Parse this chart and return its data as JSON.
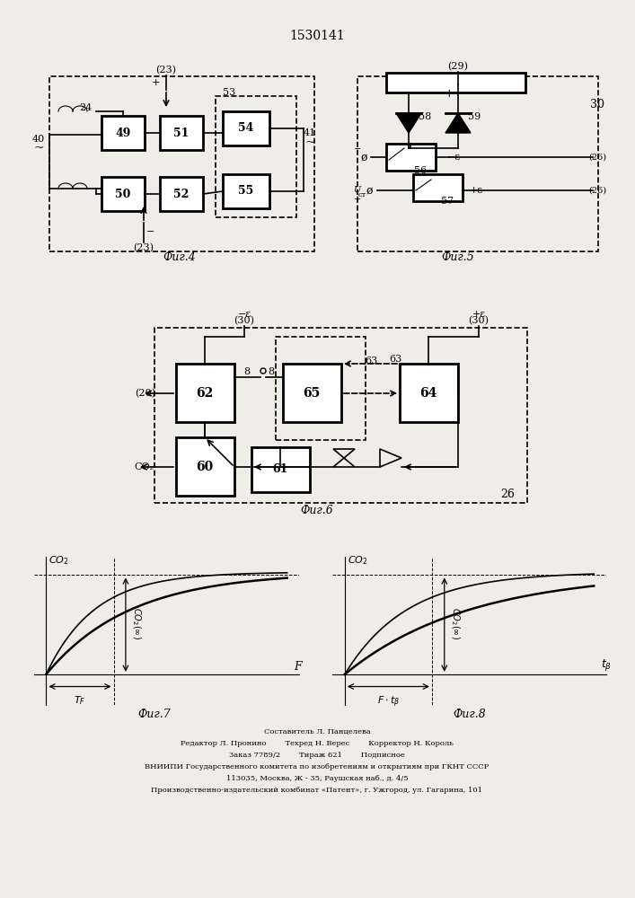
{
  "title": "1530141",
  "bg_color": "#f0ede8",
  "footer_lines": [
    "Составитель Л. Панцелева",
    "Редактор Л. Пронино          Техред Н. Верес          Корректор Н. Король",
    "Заказ 7789/2          Тираж 621          Подписное",
    "ВНИИПИ Государственного комитета по изобретениям и открытиям при ГКНТ СССР",
    "113035, Москва, Ж -  35, Раушская наб., д. 4/5",
    "Производственно-издательский комбинат «Патент», г. Ужгород, ул. Гагарина, 101"
  ]
}
